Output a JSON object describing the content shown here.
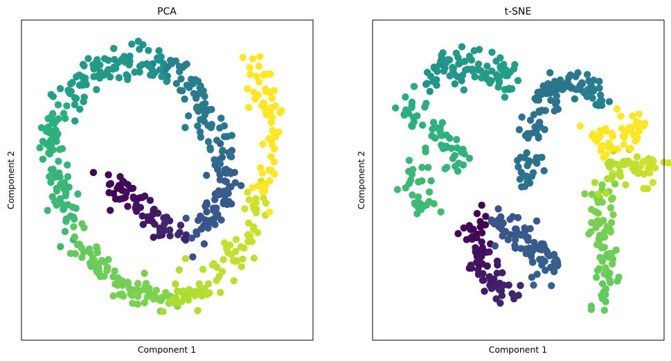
{
  "chart_data": [
    {
      "type": "scatter",
      "title": "PCA",
      "xlabel": "Component 1",
      "ylabel": "Component 2",
      "xticks": [],
      "yticks": [],
      "xlim": [
        0,
        100
      ],
      "ylim": [
        0,
        100
      ],
      "grid": false,
      "colormap": "viridis",
      "segments": [
        {
          "range": [
            0.0,
            0.16
          ],
          "center": [
            [
              29,
              51
            ],
            [
              36,
              44
            ],
            [
              42,
              38
            ],
            [
              50,
              34
            ],
            [
              57,
              33
            ]
          ],
          "n": 70,
          "spread": 2.6,
          "color": "#440154"
        },
        {
          "range": [
            0.16,
            0.3
          ],
          "center": [
            [
              57,
              33
            ],
            [
              64,
              36
            ],
            [
              70,
              42
            ],
            [
              72,
              50
            ],
            [
              70,
              58
            ]
          ],
          "n": 70,
          "spread": 2.6,
          "color": "#3b528b"
        },
        {
          "range": [
            0.3,
            0.44
          ],
          "center": [
            [
              70,
              58
            ],
            [
              68,
              66
            ],
            [
              64,
              75
            ],
            [
              57,
              83
            ],
            [
              49,
              88
            ]
          ],
          "n": 75,
          "spread": 2.6,
          "color": "#2c728e"
        },
        {
          "range": [
            0.44,
            0.6
          ],
          "center": [
            [
              49,
              88
            ],
            [
              38,
              90
            ],
            [
              27,
              89
            ],
            [
              18,
              84
            ],
            [
              11,
              76
            ]
          ],
          "n": 85,
          "spread": 3.0,
          "color": "#21918c"
        },
        {
          "range": [
            0.6,
            0.72
          ],
          "center": [
            [
              11,
              76
            ],
            [
              7,
              66
            ],
            [
              7,
              55
            ],
            [
              10,
              44
            ],
            [
              15,
              34
            ]
          ],
          "n": 80,
          "spread": 2.6,
          "color": "#27ad81"
        },
        {
          "range": [
            0.72,
            0.84
          ],
          "center": [
            [
              15,
              34
            ],
            [
              21,
              24
            ],
            [
              30,
              16
            ],
            [
              40,
              11
            ],
            [
              52,
              10
            ]
          ],
          "n": 85,
          "spread": 2.6,
          "color": "#5ec962"
        },
        {
          "range": [
            0.84,
            0.93
          ],
          "center": [
            [
              52,
              10
            ],
            [
              63,
              13
            ],
            [
              73,
              22
            ],
            [
              80,
              34
            ],
            [
              85,
              46
            ]
          ],
          "n": 80,
          "spread": 2.8,
          "color": "#aadc32"
        },
        {
          "range": [
            0.93,
            1.0
          ],
          "center": [
            [
              85,
              46
            ],
            [
              88,
              58
            ],
            [
              88,
              70
            ],
            [
              86,
              80
            ],
            [
              82,
              90
            ]
          ],
          "n": 60,
          "spread": 2.4,
          "color": "#fde725"
        }
      ]
    },
    {
      "type": "scatter",
      "title": "t-SNE",
      "xlabel": "Component 1",
      "ylabel": "Component 2",
      "xticks": [],
      "yticks": [],
      "xlim": [
        0,
        100
      ],
      "ylim": [
        0,
        100
      ],
      "grid": false,
      "colormap": "viridis",
      "segments": [
        {
          "range": [
            0.0,
            0.12
          ],
          "center": [
            [
              35,
              36
            ],
            [
              33,
              29
            ],
            [
              35,
              22
            ],
            [
              41,
              15
            ],
            [
              49,
              10
            ]
          ],
          "n": 75,
          "spread": 2.5,
          "color": "#440154"
        },
        {
          "range": [
            0.12,
            0.26
          ],
          "center": [
            [
              39,
              36
            ],
            [
              47,
              33
            ],
            [
              57,
              27
            ],
            [
              62,
              22
            ],
            [
              60,
              16
            ]
          ],
          "n": 80,
          "spread": 2.8,
          "color": "#3b528b"
        },
        {
          "range": [
            0.26,
            0.38
          ],
          "center": [
            [
              53,
              48
            ],
            [
              54,
              58
            ],
            [
              56,
              66
            ],
            [
              58,
              74
            ],
            [
              62,
              82
            ]
          ],
          "n": 70,
          "spread": 2.5,
          "color": "#2c728e"
        },
        {
          "range": [
            0.38,
            0.48
          ],
          "center": [
            [
              62,
              82
            ],
            [
              70,
              84
            ],
            [
              78,
              80
            ],
            [
              82,
              76
            ]
          ],
          "n": 55,
          "spread": 2.3,
          "color": "#2c728e"
        },
        {
          "range": [
            0.48,
            0.62
          ],
          "center": [
            [
              15,
              83
            ],
            [
              22,
              86
            ],
            [
              30,
              90
            ],
            [
              38,
              88
            ],
            [
              44,
              85
            ],
            [
              49,
              83
            ]
          ],
          "n": 85,
          "spread": 3.2,
          "color": "#21918c"
        },
        {
          "range": [
            0.62,
            0.74
          ],
          "center": [
            [
              8,
              76
            ],
            [
              16,
              70
            ],
            [
              24,
              64
            ],
            [
              30,
              58
            ],
            [
              14,
              55
            ],
            [
              9,
              45
            ],
            [
              18,
              42
            ]
          ],
          "n": 80,
          "spread": 2.7,
          "color": "#27ad81"
        },
        {
          "range": [
            0.74,
            0.86
          ],
          "center": [
            [
              79,
              8
            ],
            [
              82,
              15
            ],
            [
              84,
              23
            ],
            [
              82,
              32
            ],
            [
              79,
              40
            ],
            [
              82,
              47
            ]
          ],
          "n": 75,
          "spread": 2.5,
          "color": "#5ec962"
        },
        {
          "range": [
            0.86,
            0.94
          ],
          "center": [
            [
              82,
              47
            ],
            [
              85,
              53
            ],
            [
              92,
              56
            ],
            [
              98,
              52
            ],
            [
              99,
              59
            ]
          ],
          "n": 55,
          "spread": 2.4,
          "color": "#aadc32"
        },
        {
          "range": [
            0.94,
            1.0
          ],
          "center": [
            [
              77,
              64
            ],
            [
              84,
              62
            ],
            [
              91,
              62
            ],
            [
              95,
              68
            ],
            [
              89,
              70
            ]
          ],
          "n": 50,
          "spread": 2.3,
          "color": "#fde725"
        }
      ]
    }
  ]
}
